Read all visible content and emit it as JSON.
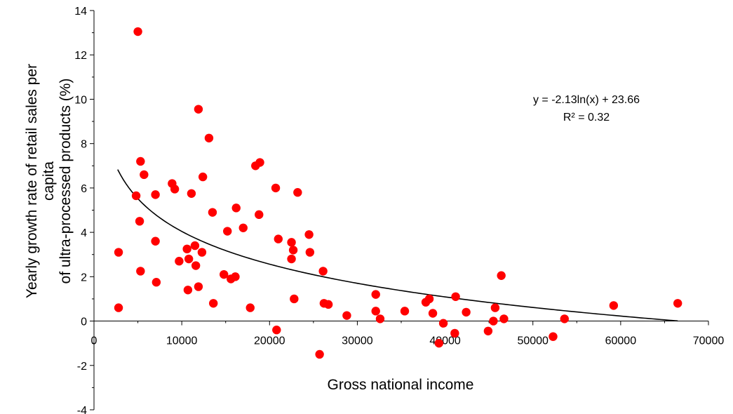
{
  "chart_data": {
    "type": "scatter",
    "xlabel": "Gross national income",
    "ylabel_lines": [
      "Yearly growth rate of retail sales per",
      "capita",
      "of ultra-processed products (%)"
    ],
    "xlim": [
      0,
      70000
    ],
    "ylim": [
      -4,
      14
    ],
    "x_ticks": [
      0,
      10000,
      20000,
      30000,
      40000,
      50000,
      60000,
      70000
    ],
    "y_ticks": [
      -4,
      -2,
      0,
      2,
      4,
      6,
      8,
      10,
      12,
      14
    ],
    "grid": false,
    "marker_color": "#ff0000",
    "trendline": {
      "type": "logarithmic",
      "a": -2.13,
      "b": 23.66,
      "x_range": [
        2700,
        66500
      ],
      "color": "#000000",
      "equation_label": "y = -2.13ln(x) + 23.66",
      "r2_label": "R² = 0.32"
    },
    "points": [
      [
        5000,
        13.05
      ],
      [
        11900,
        9.55
      ],
      [
        13100,
        8.25
      ],
      [
        5300,
        7.2
      ],
      [
        18900,
        7.15
      ],
      [
        18400,
        7.0
      ],
      [
        5700,
        6.6
      ],
      [
        12400,
        6.5
      ],
      [
        8900,
        6.2
      ],
      [
        9200,
        5.95
      ],
      [
        20700,
        6.0
      ],
      [
        23200,
        5.8
      ],
      [
        7000,
        5.7
      ],
      [
        11100,
        5.75
      ],
      [
        4800,
        5.65
      ],
      [
        16200,
        5.1
      ],
      [
        13500,
        4.9
      ],
      [
        18800,
        4.8
      ],
      [
        5200,
        4.5
      ],
      [
        17000,
        4.2
      ],
      [
        15200,
        4.05
      ],
      [
        24500,
        3.9
      ],
      [
        21000,
        3.7
      ],
      [
        7000,
        3.6
      ],
      [
        22500,
        3.55
      ],
      [
        11500,
        3.4
      ],
      [
        10600,
        3.25
      ],
      [
        22700,
        3.2
      ],
      [
        2800,
        3.1
      ],
      [
        12300,
        3.1
      ],
      [
        24600,
        3.1
      ],
      [
        10800,
        2.8
      ],
      [
        22500,
        2.8
      ],
      [
        9700,
        2.7
      ],
      [
        11600,
        2.5
      ],
      [
        5300,
        2.25
      ],
      [
        26100,
        2.25
      ],
      [
        14800,
        2.1
      ],
      [
        46400,
        2.05
      ],
      [
        15600,
        1.9
      ],
      [
        16100,
        2.0
      ],
      [
        7100,
        1.75
      ],
      [
        11900,
        1.55
      ],
      [
        10700,
        1.4
      ],
      [
        32100,
        1.2
      ],
      [
        41200,
        1.1
      ],
      [
        38200,
        1.0
      ],
      [
        22800,
        1.0
      ],
      [
        37800,
        0.85
      ],
      [
        13600,
        0.8
      ],
      [
        26200,
        0.8
      ],
      [
        66500,
        0.8
      ],
      [
        26700,
        0.75
      ],
      [
        59200,
        0.7
      ],
      [
        2800,
        0.6
      ],
      [
        17800,
        0.6
      ],
      [
        45700,
        0.6
      ],
      [
        32100,
        0.45
      ],
      [
        35400,
        0.45
      ],
      [
        42400,
        0.4
      ],
      [
        38600,
        0.35
      ],
      [
        28800,
        0.25
      ],
      [
        32600,
        0.1
      ],
      [
        46700,
        0.1
      ],
      [
        53600,
        0.1
      ],
      [
        45500,
        0.0
      ],
      [
        39800,
        -0.1
      ],
      [
        20800,
        -0.4
      ],
      [
        44900,
        -0.45
      ],
      [
        41100,
        -0.55
      ],
      [
        52300,
        -0.7
      ],
      [
        39300,
        -1.0
      ],
      [
        25700,
        -1.5
      ]
    ]
  }
}
